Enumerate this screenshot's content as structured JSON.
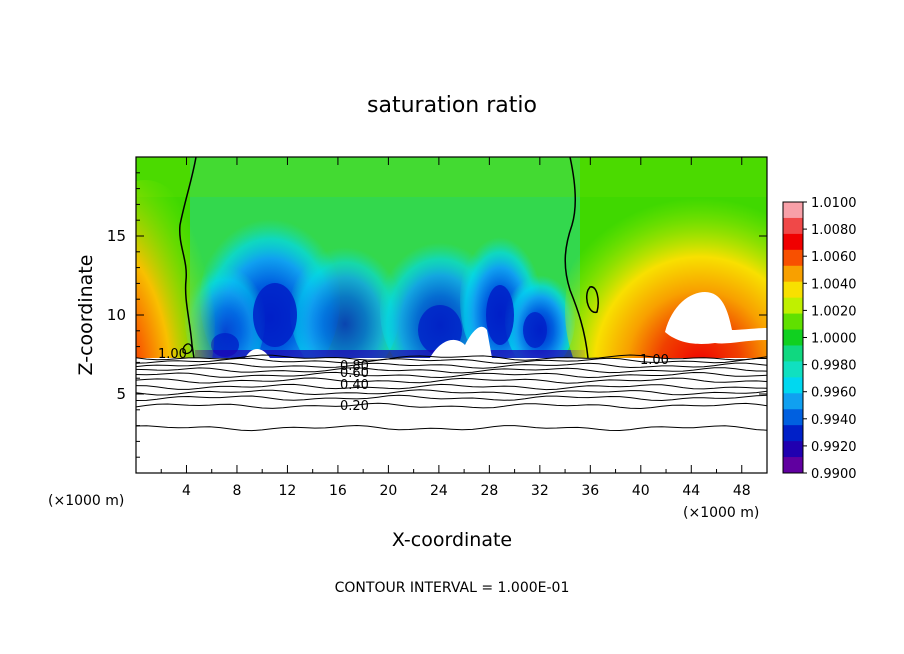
{
  "chart_data": {
    "type": "heatmap",
    "title": "saturation ratio",
    "xlabel": "X-coordinate",
    "ylabel": "Z-coordinate",
    "x_unit_left": "(×1000 m)",
    "x_unit_right": "(×1000 m)",
    "footer": "CONTOUR INTERVAL = 1.000E-01",
    "xlim": [
      0,
      50
    ],
    "ylim": [
      0,
      20
    ],
    "x_ticks": [
      "4",
      "8",
      "12",
      "16",
      "20",
      "24",
      "28",
      "32",
      "36",
      "40",
      "44",
      "48"
    ],
    "y_ticks": [
      "5",
      "10",
      "15"
    ],
    "colorbar": {
      "labels": [
        "1.0100",
        "1.0080",
        "1.0060",
        "1.0040",
        "1.0020",
        "1.0000",
        "0.9980",
        "0.9960",
        "0.9940",
        "0.9920",
        "0.9900"
      ],
      "range": [
        0.99,
        1.01
      ],
      "colors": [
        "#f8a0a8",
        "#f04848",
        "#f00000",
        "#f85000",
        "#f8a000",
        "#f8e000",
        "#c0f000",
        "#60e000",
        "#10d020",
        "#10d880",
        "#10e0c0",
        "#00d8f0",
        "#10a0f0",
        "#0060e0",
        "#0020c8",
        "#2000b0",
        "#6000a0"
      ]
    },
    "contour_labels": [
      "0.80",
      "0.60",
      "0.40",
      "0.20",
      "1.00",
      "1.00"
    ],
    "contour_levels_below": [
      7.3,
      7.1,
      6.8,
      6.5,
      6.2,
      5.85,
      5.45,
      5.1,
      4.75,
      4.25,
      2.85
    ]
  }
}
